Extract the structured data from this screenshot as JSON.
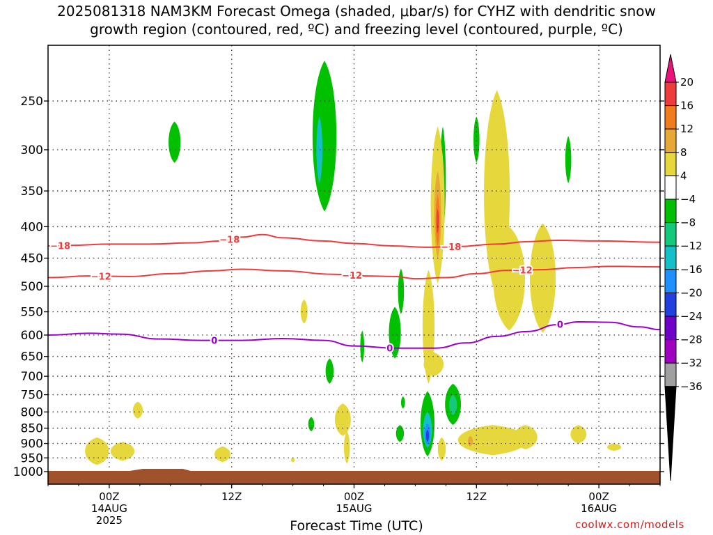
{
  "title_line1": "2025081318 NAM3KM Forecast Omega (shaded, μbar/s) for CYHZ with dendritic snow",
  "title_line2": "growth region (contoured, red, ºC) and freezing level (contoured, purple, ºC)",
  "credit": "coolwx.com/models",
  "chart_data": {
    "type": "contour",
    "xlabel": "Forecast Time (UTC)",
    "ylabel": "",
    "x_ticks": [
      {
        "label": "00Z",
        "sub": "14AUG",
        "sub2": "2025",
        "hour": 6
      },
      {
        "label": "12Z",
        "sub": "",
        "sub2": "",
        "hour": 18
      },
      {
        "label": "00Z",
        "sub": "15AUG",
        "sub2": "",
        "hour": 30
      },
      {
        "label": "12Z",
        "sub": "",
        "sub2": "",
        "hour": 42
      },
      {
        "label": "00Z",
        "sub": "16AUG",
        "sub2": "",
        "hour": 54
      }
    ],
    "x_range_hours": [
      0,
      60
    ],
    "y_ticks": [
      250,
      300,
      350,
      400,
      450,
      500,
      550,
      600,
      650,
      700,
      750,
      800,
      850,
      900,
      950,
      1000
    ],
    "y_range_hpa": [
      200,
      1030
    ],
    "y_scale": "log",
    "colorbar": {
      "labels": [
        "20",
        "16",
        "12",
        "8",
        "4",
        "−4",
        "−8",
        "−12",
        "−16",
        "−20",
        "−24",
        "−28",
        "−32",
        "−36"
      ],
      "colors": [
        "#e8127a",
        "#ee3b3b",
        "#f07c1c",
        "#e8a838",
        "#e6d83c",
        "#ffffff",
        "#00c000",
        "#14c87c",
        "#14c0c8",
        "#1e90ff",
        "#2040e0",
        "#7000c8",
        "#a000c0",
        "#a0a0a0",
        "#000000"
      ]
    },
    "contours": [
      {
        "name": "dendritic -18",
        "label": "−18",
        "color": "#ee3b3b",
        "points": [
          [
            0,
            430
          ],
          [
            2,
            429
          ],
          [
            6,
            427
          ],
          [
            10,
            427
          ],
          [
            14,
            425
          ],
          [
            17,
            422
          ],
          [
            19,
            416
          ],
          [
            21,
            412
          ],
          [
            23,
            417
          ],
          [
            27,
            422
          ],
          [
            30,
            426
          ],
          [
            34,
            430
          ],
          [
            37,
            432
          ],
          [
            40,
            431
          ],
          [
            44,
            427
          ],
          [
            47,
            423
          ],
          [
            50,
            421
          ],
          [
            54,
            422
          ],
          [
            60,
            424
          ]
        ]
      },
      {
        "name": "dendritic -12",
        "label": "−12",
        "color": "#ee3b3b",
        "points": [
          [
            0,
            484
          ],
          [
            4,
            481
          ],
          [
            8,
            482
          ],
          [
            12,
            477
          ],
          [
            16,
            472
          ],
          [
            19,
            469
          ],
          [
            23,
            472
          ],
          [
            28,
            478
          ],
          [
            31,
            481
          ],
          [
            34,
            482
          ],
          [
            36,
            486
          ],
          [
            39,
            484
          ],
          [
            42,
            477
          ],
          [
            45,
            471
          ],
          [
            48,
            470
          ],
          [
            52,
            466
          ],
          [
            55,
            464
          ],
          [
            60,
            465
          ]
        ]
      },
      {
        "name": "freezing level",
        "label": "0",
        "color": "#9900cc",
        "points": [
          [
            0,
            600
          ],
          [
            4,
            596
          ],
          [
            7,
            598
          ],
          [
            11,
            609
          ],
          [
            15,
            612
          ],
          [
            19,
            612
          ],
          [
            23,
            608
          ],
          [
            27,
            612
          ],
          [
            30,
            625
          ],
          [
            34,
            630
          ],
          [
            38,
            630
          ],
          [
            41,
            618
          ],
          [
            44,
            603
          ],
          [
            47,
            592
          ],
          [
            50,
            577
          ],
          [
            52,
            571
          ],
          [
            55,
            572
          ],
          [
            58,
            582
          ],
          [
            60,
            588
          ]
        ]
      }
    ],
    "omega_regions": [
      {
        "label": "-8",
        "color": "#00c000",
        "cx": 12.4,
        "p_top": 270,
        "p_bot": 315,
        "hw": 0.6
      },
      {
        "label": "-8",
        "color": "#00c000",
        "cx": 27.1,
        "p_top": 215,
        "p_bot": 378,
        "hw": 1.2
      },
      {
        "label": "-12",
        "color": "#14c0c8",
        "cx": 26.6,
        "p_top": 265,
        "p_bot": 340,
        "hw": 0.3
      },
      {
        "label": "-8",
        "color": "#00c000",
        "cx": 38.7,
        "p_top": 275,
        "p_bot": 410,
        "hw": 0.3
      },
      {
        "label": "-8",
        "color": "#00c000",
        "cx": 42.0,
        "p_top": 265,
        "p_bot": 315,
        "hw": 0.3
      },
      {
        "label": "-8",
        "color": "#00c000",
        "cx": 51.0,
        "p_top": 285,
        "p_bot": 340,
        "hw": 0.3
      },
      {
        "label": "4",
        "color": "#e6d83c",
        "cx": 38.2,
        "p_top": 275,
        "p_bot": 495,
        "hw": 0.7
      },
      {
        "label": "8",
        "color": "#e8a838",
        "cx": 38.2,
        "p_top": 325,
        "p_bot": 450,
        "hw": 0.35
      },
      {
        "label": "12",
        "color": "#f07c1c",
        "cx": 38.2,
        "p_top": 355,
        "p_bot": 430,
        "hw": 0.2
      },
      {
        "label": "16",
        "color": "#ee3b3b",
        "cx": 38.2,
        "p_top": 375,
        "p_bot": 410,
        "hw": 0.12
      },
      {
        "label": "4",
        "color": "#e6d83c",
        "cx": 44.0,
        "p_top": 240,
        "p_bot": 520,
        "hw": 1.3
      },
      {
        "label": "4",
        "color": "#e6d83c",
        "cx": 45.2,
        "p_top": 400,
        "p_bot": 590,
        "hw": 1.6
      },
      {
        "label": "4",
        "color": "#e6d83c",
        "cx": 48.5,
        "p_top": 395,
        "p_bot": 595,
        "hw": 1.3
      },
      {
        "label": "4",
        "color": "#e6d83c",
        "cx": 25.1,
        "p_top": 525,
        "p_bot": 575,
        "hw": 0.35
      },
      {
        "label": "-8",
        "color": "#00c000",
        "cx": 34.6,
        "p_top": 468,
        "p_bot": 555,
        "hw": 0.3
      },
      {
        "label": "-8",
        "color": "#00c000",
        "cx": 34.0,
        "p_top": 540,
        "p_bot": 655,
        "hw": 0.6
      },
      {
        "label": "-8",
        "color": "#00c000",
        "cx": 27.6,
        "p_top": 655,
        "p_bot": 720,
        "hw": 0.4
      },
      {
        "label": "-8",
        "color": "#00c000",
        "cx": 30.8,
        "p_top": 590,
        "p_bot": 665,
        "hw": 0.2
      },
      {
        "label": "4",
        "color": "#e6d83c",
        "cx": 37.3,
        "p_top": 470,
        "p_bot": 720,
        "hw": 0.6
      },
      {
        "label": "4",
        "color": "#e6d83c",
        "cx": 37.8,
        "p_top": 640,
        "p_bot": 700,
        "hw": 1.0
      },
      {
        "label": "-8",
        "color": "#00c000",
        "cx": 37.2,
        "p_top": 740,
        "p_bot": 945,
        "hw": 0.7
      },
      {
        "label": "-16",
        "color": "#14c0c8",
        "cx": 37.2,
        "p_top": 800,
        "p_bot": 915,
        "hw": 0.45
      },
      {
        "label": "-20",
        "color": "#1e90ff",
        "cx": 37.2,
        "p_top": 835,
        "p_bot": 905,
        "hw": 0.3
      },
      {
        "label": "-24",
        "color": "#2040e0",
        "cx": 37.2,
        "p_top": 855,
        "p_bot": 895,
        "hw": 0.15
      },
      {
        "label": "-8",
        "color": "#00c000",
        "cx": 39.7,
        "p_top": 720,
        "p_bot": 840,
        "hw": 0.8
      },
      {
        "label": "-12",
        "color": "#14c87c",
        "cx": 39.7,
        "p_top": 750,
        "p_bot": 810,
        "hw": 0.4
      },
      {
        "label": "-8",
        "color": "#00c000",
        "cx": 34.5,
        "p_top": 840,
        "p_bot": 895,
        "hw": 0.4
      },
      {
        "label": "-8",
        "color": "#00c000",
        "cx": 34.8,
        "p_top": 755,
        "p_bot": 790,
        "hw": 0.2
      },
      {
        "label": "-8",
        "color": "#00c000",
        "cx": 25.8,
        "p_top": 815,
        "p_bot": 860,
        "hw": 0.3
      },
      {
        "label": "4",
        "color": "#e6d83c",
        "cx": 28.9,
        "p_top": 775,
        "p_bot": 875,
        "hw": 0.8
      },
      {
        "label": "4",
        "color": "#e6d83c",
        "cx": 29.3,
        "p_top": 860,
        "p_bot": 970,
        "hw": 0.3
      },
      {
        "label": "4",
        "color": "#e6d83c",
        "cx": 38.6,
        "p_top": 880,
        "p_bot": 960,
        "hw": 0.4
      },
      {
        "label": "4",
        "color": "#e6d83c",
        "cx": 4.8,
        "p_top": 880,
        "p_bot": 975,
        "hw": 1.2
      },
      {
        "label": "4",
        "color": "#e6d83c",
        "cx": 7.3,
        "p_top": 895,
        "p_bot": 960,
        "hw": 1.2
      },
      {
        "label": "4",
        "color": "#e6d83c",
        "cx": 8.8,
        "p_top": 770,
        "p_bot": 820,
        "hw": 0.5
      },
      {
        "label": "4",
        "color": "#e6d83c",
        "cx": 17.1,
        "p_top": 910,
        "p_bot": 965,
        "hw": 0.8
      },
      {
        "label": "4",
        "color": "#e6d83c",
        "cx": 43.6,
        "p_top": 840,
        "p_bot": 940,
        "hw": 3.5
      },
      {
        "label": "4",
        "color": "#e6d83c",
        "cx": 46.8,
        "p_top": 840,
        "p_bot": 920,
        "hw": 1.2
      },
      {
        "label": "8",
        "color": "#e8a838",
        "cx": 41.4,
        "p_top": 875,
        "p_bot": 910,
        "hw": 0.25
      },
      {
        "label": "4",
        "color": "#e6d83c",
        "cx": 52.0,
        "p_top": 840,
        "p_bot": 900,
        "hw": 0.8
      },
      {
        "label": "4",
        "color": "#e6d83c",
        "cx": 55.5,
        "p_top": 900,
        "p_bot": 925,
        "hw": 0.7
      },
      {
        "label": "4",
        "color": "#e6d83c",
        "cx": 24.0,
        "p_top": 950,
        "p_bot": 965,
        "hw": 0.2
      }
    ]
  }
}
